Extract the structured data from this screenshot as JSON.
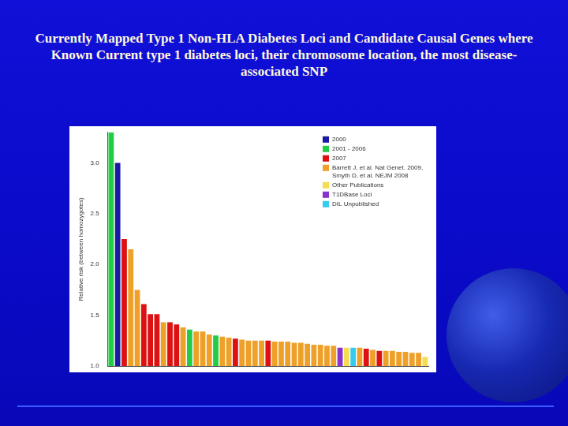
{
  "chart_data": {
    "type": "bar",
    "title": "Currently Mapped Type 1 Non-HLA Diabetes Loci and Candidate Causal Genes where Known Current type 1 diabetes loci, their chromosome location, the most disease-associated SNP",
    "ylabel": "Relative risk (between homozygotes)",
    "categories": [
      null,
      null,
      null,
      null,
      null,
      null,
      null,
      null,
      null,
      null,
      null,
      null,
      null,
      null,
      null,
      null,
      null,
      null,
      null,
      null,
      null,
      null,
      null,
      null,
      null,
      null,
      null,
      null,
      null,
      null,
      null,
      null,
      null,
      null,
      null,
      null,
      null,
      null,
      null,
      null,
      null,
      null,
      null,
      null,
      null,
      null,
      null,
      null,
      null
    ],
    "series": [
      {
        "name": "2000",
        "color": "#1a1aa6",
        "values": [
          null,
          3.0,
          null,
          null,
          null,
          null,
          null,
          null,
          null,
          null,
          null,
          null,
          null,
          null,
          null,
          null,
          null,
          null,
          null,
          null,
          null,
          null,
          null,
          null,
          null,
          null,
          null,
          null,
          null,
          null,
          null,
          null,
          null,
          null,
          null,
          null,
          null,
          null,
          null,
          null,
          null,
          null,
          null,
          null,
          null,
          null,
          null,
          null,
          null
        ]
      },
      {
        "name": "2001 - 2006",
        "color": "#22cc44",
        "values": [
          3.3,
          null,
          null,
          null,
          null,
          null,
          null,
          null,
          null,
          null,
          null,
          null,
          1.36,
          null,
          null,
          null,
          1.3,
          null,
          null,
          null,
          null,
          null,
          null,
          null,
          null,
          null,
          null,
          null,
          null,
          null,
          null,
          null,
          null,
          null,
          null,
          null,
          null,
          null,
          null,
          null,
          null,
          null,
          null,
          null,
          null,
          null,
          null,
          null,
          null
        ]
      },
      {
        "name": "2007",
        "color": "#dd1111",
        "values": [
          null,
          null,
          2.25,
          null,
          null,
          1.61,
          1.51,
          1.51,
          null,
          1.43,
          1.41,
          null,
          null,
          null,
          null,
          null,
          null,
          null,
          null,
          1.27,
          null,
          null,
          null,
          null,
          1.25,
          null,
          null,
          null,
          null,
          null,
          null,
          null,
          null,
          null,
          null,
          null,
          null,
          null,
          null,
          1.17,
          null,
          1.15,
          null,
          null,
          null,
          null,
          null,
          null,
          null
        ]
      },
      {
        "name": "Barrett J, et al. Nat Genet. 2009, Smyth D, et al. NEJM 2008",
        "color": "#eea028",
        "values": [
          null,
          null,
          null,
          2.15,
          1.75,
          null,
          null,
          null,
          1.43,
          null,
          null,
          1.38,
          null,
          1.34,
          1.34,
          1.31,
          null,
          1.29,
          1.28,
          null,
          1.26,
          1.25,
          1.25,
          1.25,
          null,
          1.24,
          1.24,
          1.24,
          1.23,
          1.23,
          1.22,
          1.21,
          1.21,
          1.2,
          1.2,
          null,
          null,
          null,
          1.18,
          null,
          1.16,
          null,
          1.15,
          1.15,
          1.14,
          1.14,
          1.13,
          1.13,
          null
        ]
      },
      {
        "name": "Other Publications",
        "color": "#f5dc50",
        "values": [
          null,
          null,
          null,
          null,
          null,
          null,
          null,
          null,
          null,
          null,
          null,
          null,
          null,
          null,
          null,
          null,
          null,
          null,
          null,
          null,
          null,
          null,
          null,
          null,
          null,
          null,
          null,
          null,
          null,
          null,
          null,
          null,
          null,
          null,
          null,
          null,
          1.18,
          null,
          null,
          null,
          null,
          null,
          null,
          null,
          null,
          null,
          null,
          null,
          1.09
        ]
      },
      {
        "name": "T1DBase Loci",
        "color": "#8833cc",
        "values": [
          null,
          null,
          null,
          null,
          null,
          null,
          null,
          null,
          null,
          null,
          null,
          null,
          null,
          null,
          null,
          null,
          null,
          null,
          null,
          null,
          null,
          null,
          null,
          null,
          null,
          null,
          null,
          null,
          null,
          null,
          null,
          null,
          null,
          null,
          null,
          1.18,
          null,
          null,
          null,
          null,
          null,
          null,
          null,
          null,
          null,
          null,
          null,
          null,
          null
        ]
      },
      {
        "name": "DIL Unpublished",
        "color": "#33ccee",
        "values": [
          null,
          null,
          null,
          null,
          null,
          null,
          null,
          null,
          null,
          null,
          null,
          null,
          null,
          null,
          null,
          null,
          null,
          null,
          null,
          null,
          null,
          null,
          null,
          null,
          null,
          null,
          null,
          null,
          null,
          null,
          null,
          null,
          null,
          null,
          null,
          null,
          null,
          1.18,
          null,
          null,
          null,
          null,
          null,
          null,
          null,
          null,
          null,
          null,
          null
        ]
      }
    ],
    "ylim": [
      1,
      3.3
    ],
    "yticks": [
      {
        "value": 1,
        "label": "1.0"
      },
      1.5,
      {
        "value": 2,
        "label": "2.0"
      },
      2.5,
      {
        "value": 3,
        "label": "3.0"
      }
    ],
    "grid": false,
    "stacked": true,
    "legend": "upper right",
    "tick_labels": "y"
  }
}
